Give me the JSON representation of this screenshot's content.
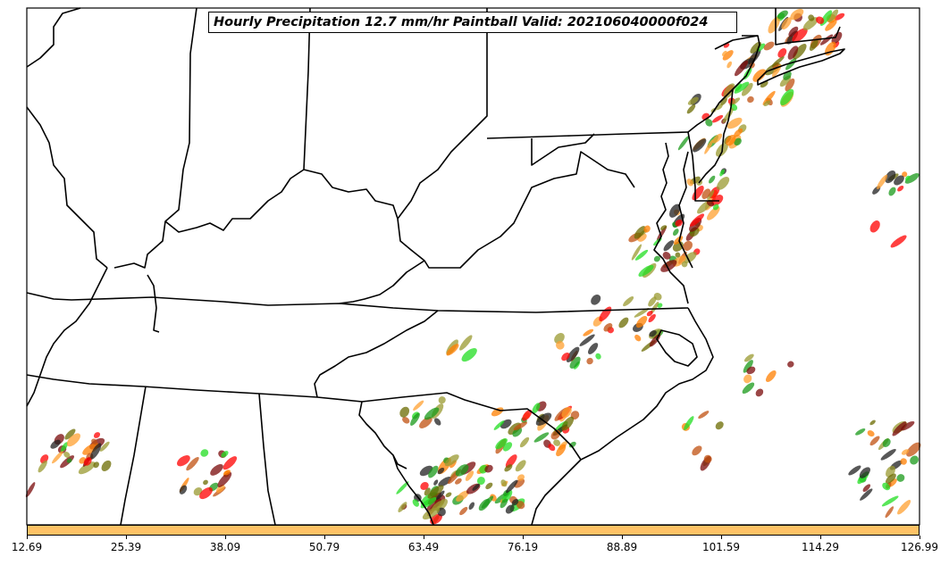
{
  "title": "Hourly Precipitation 12.7 mm/hr Paintball Valid: 202106040000f024",
  "colorbar": {
    "color": "#fec266",
    "ticks": [
      "12.69",
      "25.39",
      "38.09",
      "50.79",
      "63.49",
      "76.19",
      "88.89",
      "101.59",
      "114.29",
      "126.99"
    ]
  },
  "map": {
    "border_color": "#000000",
    "background": "#ffffff",
    "paint_colors": [
      "#ff0000",
      "#ff7f00",
      "#ffa030",
      "#1a9a1a",
      "#22dd22",
      "#6b6b00",
      "#9a9a30",
      "#7a0a0a",
      "#202020",
      "#c05010"
    ]
  }
}
